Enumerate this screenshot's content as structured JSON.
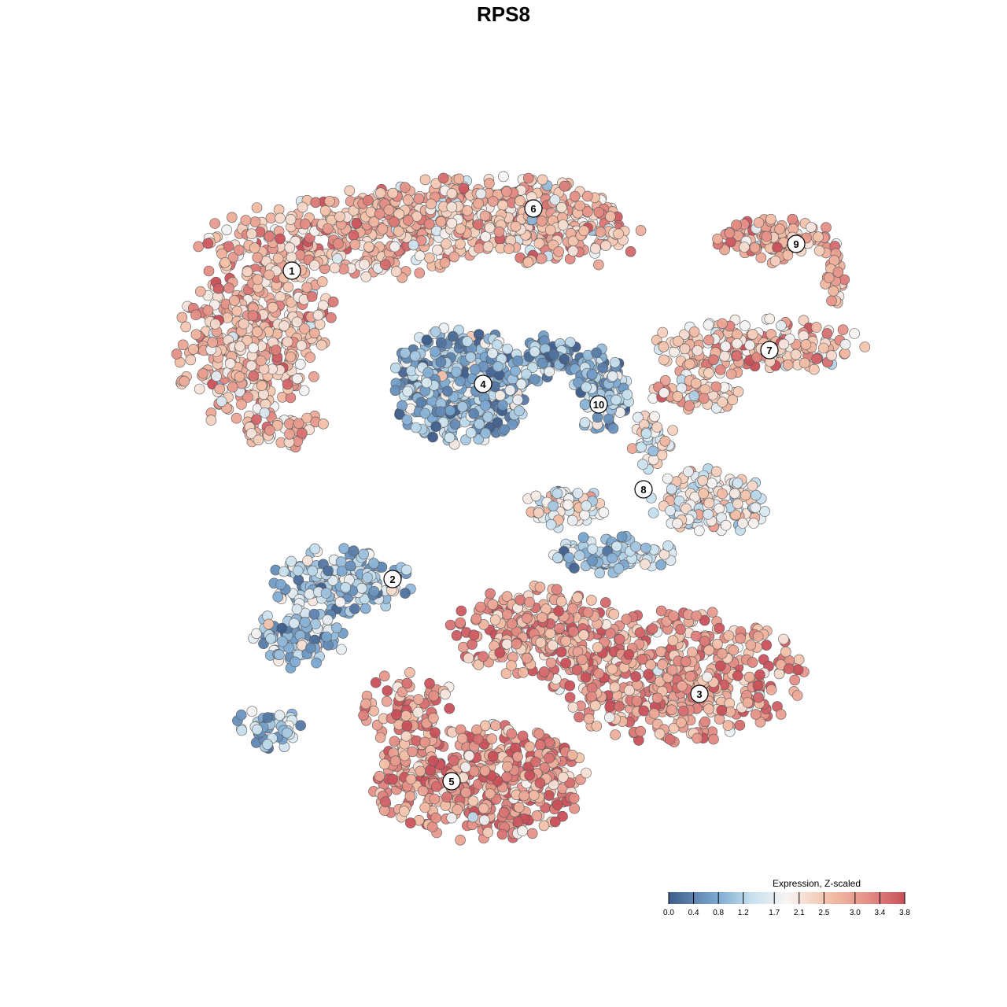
{
  "title": "RPS8",
  "chart_data": {
    "type": "scatter",
    "title": "RPS8",
    "xlabel": "",
    "ylabel": "",
    "grid": false,
    "legend": {
      "title": "Expression, Z-scaled",
      "placement": "bottom-right",
      "ticks": [
        0.0,
        0.4,
        0.8,
        1.2,
        1.7,
        2.1,
        2.5,
        3.0,
        3.4,
        3.8
      ],
      "tick_labels": [
        "0.0",
        "0.4",
        "0.8",
        "1.2",
        "1.7",
        "2.1",
        "2.5",
        "3.0",
        "3.4",
        "3.8"
      ],
      "range": [
        0.0,
        3.8
      ],
      "colors": [
        "#4a6a94",
        "#7fa9d2",
        "#c6e0ee",
        "#f8f3f2",
        "#f3c1a8",
        "#e98f86",
        "#cc545c"
      ]
    },
    "clusters": [
      {
        "label": "1",
        "mean_expression": 2.7
      },
      {
        "label": "2",
        "mean_expression": 1.1
      },
      {
        "label": "3",
        "mean_expression": 3.0
      },
      {
        "label": "4",
        "mean_expression": 0.9
      },
      {
        "label": "5",
        "mean_expression": 3.1
      },
      {
        "label": "6",
        "mean_expression": 2.6
      },
      {
        "label": "7",
        "mean_expression": 2.6
      },
      {
        "label": "8",
        "mean_expression": 1.9
      },
      {
        "label": "9",
        "mean_expression": 2.8
      },
      {
        "label": "10",
        "mean_expression": 0.8
      }
    ]
  }
}
